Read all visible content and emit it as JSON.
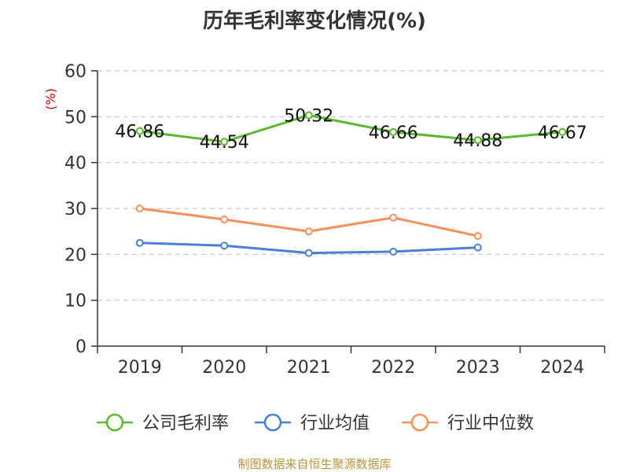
{
  "chart_data": {
    "type": "line",
    "title": "历年毛利率变化情况(%)",
    "ylabel": "(%)",
    "xlabel": "",
    "categories": [
      "2019",
      "2020",
      "2021",
      "2022",
      "2023",
      "2024"
    ],
    "ylim": [
      0,
      60
    ],
    "yticks": [
      0,
      10,
      20,
      30,
      40,
      50,
      60
    ],
    "grid": true,
    "legend_position": "bottom",
    "series": [
      {
        "name": "公司毛利率",
        "color": "#5cb82c",
        "values": [
          46.86,
          44.54,
          50.32,
          46.66,
          44.88,
          46.67
        ],
        "labels": true
      },
      {
        "name": "行业均值",
        "color": "#4a7fd6",
        "values": [
          22.5,
          21.9,
          20.3,
          20.6,
          21.5,
          null
        ],
        "labels": false
      },
      {
        "name": "行业中位数",
        "color": "#f4915a",
        "values": [
          30.0,
          27.6,
          25.0,
          28.0,
          24.0,
          null
        ],
        "labels": false
      }
    ]
  },
  "footer": {
    "source": "制图数据来自恒生聚源数据库"
  }
}
